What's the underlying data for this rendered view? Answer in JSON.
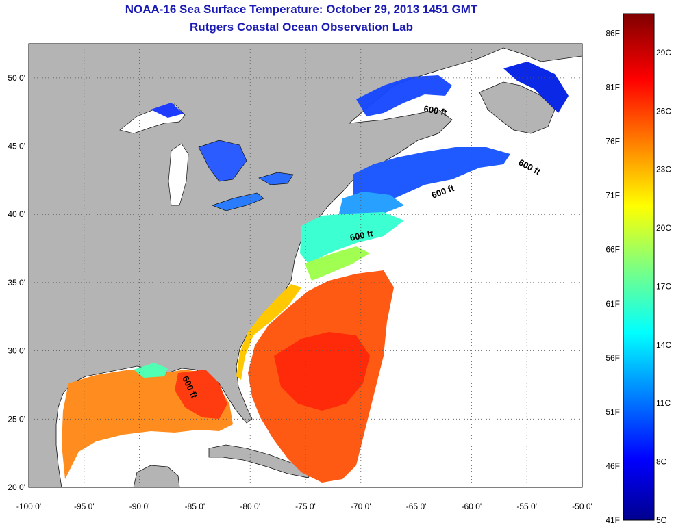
{
  "title": {
    "line1": "NOAA-16 Sea Surface Temperature:  October 29, 2013 1451 GMT",
    "line2": "Rutgers Coastal Ocean Observation Lab"
  },
  "map": {
    "lon_range": [
      -100,
      -50
    ],
    "lat_range": [
      20,
      52.5
    ],
    "lon_ticks": [
      "-100 0'",
      "-95 0'",
      "-90 0'",
      "-85 0'",
      "-80 0'",
      "-75 0'",
      "-70 0'",
      "-65 0'",
      "-60 0'",
      "-55 0'",
      "-50 0'"
    ],
    "lat_ticks": [
      "20 0'",
      "25 0'",
      "30 0'",
      "35 0'",
      "40 0'",
      "45 0'",
      "50 0'"
    ],
    "land_color": "#b4b4b4",
    "no_data_color": "#ffffff",
    "isobath_labels": [
      "600 ft",
      "600 ft",
      "600 ft",
      "600 ft",
      "600 ft"
    ]
  },
  "colorbar": {
    "fahrenheit_labels": [
      "86F",
      "81F",
      "76F",
      "71F",
      "66F",
      "61F",
      "56F",
      "51F",
      "46F",
      "41F"
    ],
    "celsius_labels": [
      "29C",
      "26C",
      "23C",
      "20C",
      "17C",
      "14C",
      "11C",
      "8C",
      "5C"
    ],
    "range_c": [
      5,
      31
    ]
  }
}
